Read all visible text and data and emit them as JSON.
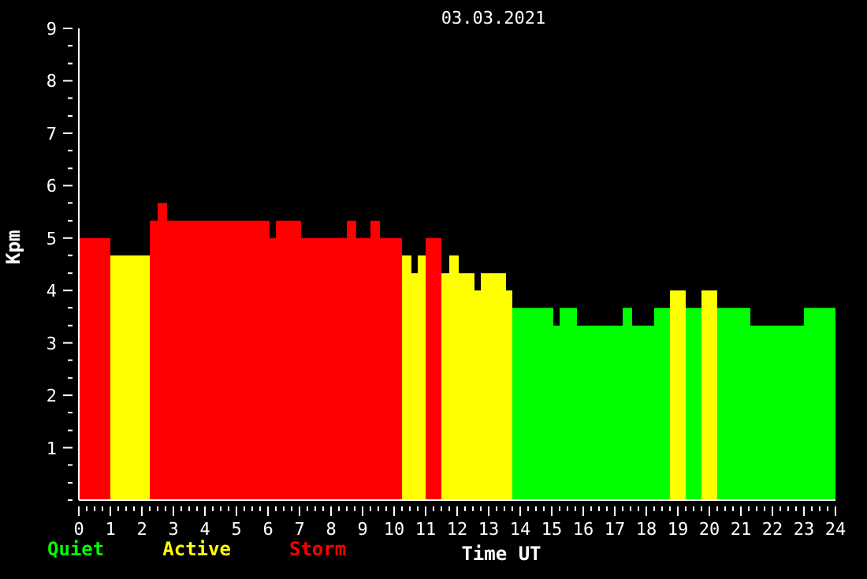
{
  "chart_data": {
    "type": "histogram",
    "title": "03.03.2021",
    "xlabel": "Time UT",
    "ylabel": "Kpm",
    "bins": [
      0,
      1,
      2.25,
      2.5,
      2.8,
      6.05,
      6.25,
      7.05,
      8.5,
      8.8,
      9.25,
      9.55,
      10.25,
      10.55,
      10.75,
      11,
      11.5,
      11.75,
      12.05,
      12.55,
      12.75,
      13.55,
      13.75,
      15.05,
      15.25,
      15.8,
      17.25,
      17.55,
      18.25,
      18.75,
      19.25,
      19.75,
      20.25,
      21.3,
      23,
      24
    ],
    "series": [
      {
        "name": "Quiet",
        "color": "#00ff00",
        "values": [
          null,
          null,
          null,
          null,
          null,
          null,
          null,
          null,
          null,
          null,
          null,
          null,
          null,
          null,
          null,
          null,
          null,
          null,
          null,
          null,
          null,
          null,
          3.67,
          3.33,
          3.67,
          3.33,
          3.67,
          3.33,
          3.67,
          null,
          3.67,
          null,
          3.67,
          3.33,
          3.67
        ]
      },
      {
        "name": "Active",
        "color": "#ffff00",
        "values": [
          null,
          4.67,
          null,
          null,
          null,
          null,
          null,
          null,
          null,
          null,
          null,
          null,
          4.67,
          4.33,
          4.67,
          null,
          4.33,
          4.67,
          4.33,
          4,
          4.33,
          4,
          null,
          null,
          null,
          null,
          null,
          null,
          null,
          4,
          null,
          4,
          null,
          null,
          null
        ]
      },
      {
        "name": "Storm",
        "color": "#ff0000",
        "values": [
          5,
          null,
          5.33,
          5.67,
          5.33,
          5,
          5.33,
          5,
          5.33,
          5,
          5.33,
          5,
          null,
          null,
          null,
          5,
          null,
          null,
          null,
          null,
          null,
          null,
          null,
          null,
          null,
          null,
          null,
          null,
          null,
          null,
          null,
          null,
          null,
          null,
          null
        ]
      }
    ],
    "legend": "bottom left",
    "xlim": [
      0,
      24
    ],
    "xticks": [
      0,
      {
        "value": 0.25,
        "label": null
      },
      {
        "value": 0.5,
        "label": null
      },
      {
        "value": 0.75,
        "label": null
      },
      1,
      {
        "value": 1.25,
        "label": null
      },
      {
        "value": 1.5,
        "label": null
      },
      {
        "value": 1.75,
        "label": null
      },
      2,
      {
        "value": 2.25,
        "label": null
      },
      {
        "value": 2.5,
        "label": null
      },
      {
        "value": 2.75,
        "label": null
      },
      3,
      {
        "value": 3.25,
        "label": null
      },
      {
        "value": 3.5,
        "label": null
      },
      {
        "value": 3.75,
        "label": null
      },
      4,
      {
        "value": 4.25,
        "label": null
      },
      {
        "value": 4.5,
        "label": null
      },
      {
        "value": 4.75,
        "label": null
      },
      5,
      {
        "value": 5.25,
        "label": null
      },
      {
        "value": 5.5,
        "label": null
      },
      {
        "value": 5.75,
        "label": null
      },
      6,
      {
        "value": 6.25,
        "label": null
      },
      {
        "value": 6.5,
        "label": null
      },
      {
        "value": 6.75,
        "label": null
      },
      7,
      {
        "value": 7.25,
        "label": null
      },
      {
        "value": 7.5,
        "label": null
      },
      {
        "value": 7.75,
        "label": null
      },
      8,
      {
        "value": 8.25,
        "label": null
      },
      {
        "value": 8.5,
        "label": null
      },
      {
        "value": 8.75,
        "label": null
      },
      9,
      {
        "value": 9.25,
        "label": null
      },
      {
        "value": 9.5,
        "label": null
      },
      {
        "value": 9.75,
        "label": null
      },
      10,
      {
        "value": 10.25,
        "label": null
      },
      {
        "value": 10.5,
        "label": null
      },
      {
        "value": 10.75,
        "label": null
      },
      11,
      {
        "value": 11.25,
        "label": null
      },
      {
        "value": 11.5,
        "label": null
      },
      {
        "value": 11.75,
        "label": null
      },
      12,
      {
        "value": 12.25,
        "label": null
      },
      {
        "value": 12.5,
        "label": null
      },
      {
        "value": 12.75,
        "label": null
      },
      13,
      {
        "value": 13.25,
        "label": null
      },
      {
        "value": 13.5,
        "label": null
      },
      {
        "value": 13.75,
        "label": null
      },
      14,
      {
        "value": 14.25,
        "label": null
      },
      {
        "value": 14.5,
        "label": null
      },
      {
        "value": 14.75,
        "label": null
      },
      15,
      {
        "value": 15.25,
        "label": null
      },
      {
        "value": 15.5,
        "label": null
      },
      {
        "value": 15.75,
        "label": null
      },
      16,
      {
        "value": 16.25,
        "label": null
      },
      {
        "value": 16.5,
        "label": null
      },
      {
        "value": 16.75,
        "label": null
      },
      17,
      {
        "value": 17.25,
        "label": null
      },
      {
        "value": 17.5,
        "label": null
      },
      {
        "value": 17.75,
        "label": null
      },
      18,
      {
        "value": 18.25,
        "label": null
      },
      {
        "value": 18.5,
        "label": null
      },
      {
        "value": 18.75,
        "label": null
      },
      19,
      {
        "value": 19.25,
        "label": null
      },
      {
        "value": 19.5,
        "label": null
      },
      {
        "value": 19.75,
        "label": null
      },
      20,
      {
        "value": 20.25,
        "label": null
      },
      {
        "value": 20.5,
        "label": null
      },
      {
        "value": 20.75,
        "label": null
      },
      21,
      {
        "value": 21.25,
        "label": null
      },
      {
        "value": 21.5,
        "label": null
      },
      {
        "value": 21.75,
        "label": null
      },
      22,
      {
        "value": 22.25,
        "label": null
      },
      {
        "value": 22.5,
        "label": null
      },
      {
        "value": 22.75,
        "label": null
      },
      23,
      {
        "value": 23.25,
        "label": null
      },
      {
        "value": 23.5,
        "label": null
      },
      {
        "value": 23.75,
        "label": null
      },
      24
    ],
    "ylim": [
      0,
      9
    ],
    "yticks": [
      {
        "value": 0,
        "label": null
      },
      {
        "value": 0.33,
        "label": null
      },
      {
        "value": 0.67,
        "label": null
      },
      1,
      {
        "value": 1.33,
        "label": null
      },
      {
        "value": 1.67,
        "label": null
      },
      2,
      {
        "value": 2.33,
        "label": null
      },
      {
        "value": 2.67,
        "label": null
      },
      3,
      {
        "value": 3.33,
        "label": null
      },
      {
        "value": 3.67,
        "label": null
      },
      4,
      {
        "value": 4.33,
        "label": null
      },
      {
        "value": 4.67,
        "label": null
      },
      5,
      {
        "value": 5.33,
        "label": null
      },
      {
        "value": 5.67,
        "label": null
      },
      6,
      {
        "value": 6.33,
        "label": null
      },
      {
        "value": 6.67,
        "label": null
      },
      7,
      {
        "value": 7.33,
        "label": null
      },
      {
        "value": 7.67,
        "label": null
      },
      8,
      {
        "value": 8.33,
        "label": null
      },
      {
        "value": 8.67,
        "label": null
      },
      9
    ]
  }
}
